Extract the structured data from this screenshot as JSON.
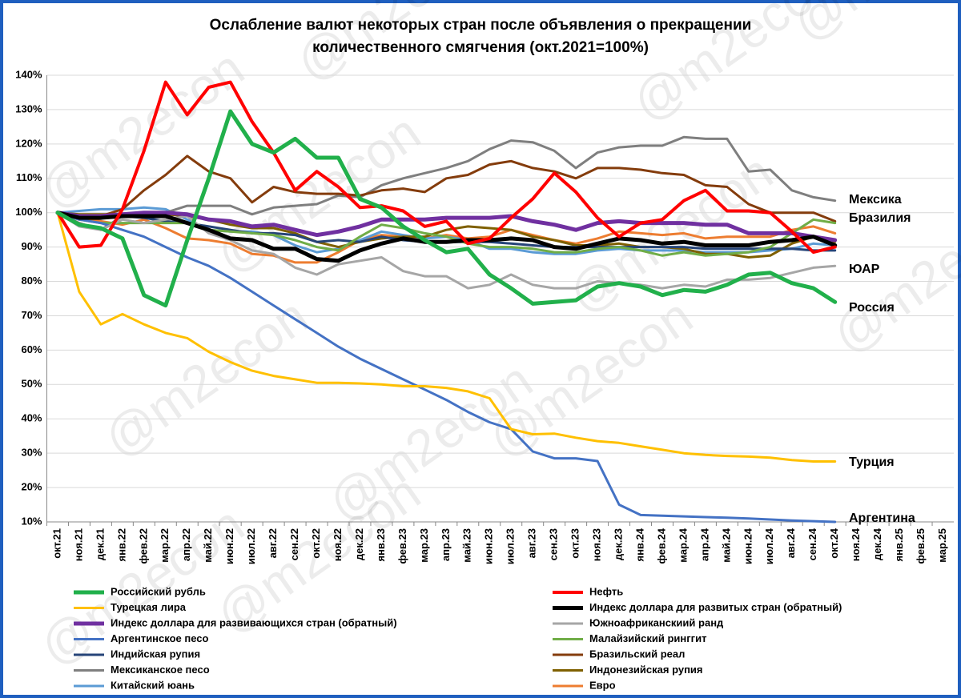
{
  "chart_data": {
    "type": "line",
    "title": [
      "Ослабление валют некоторых стран после объявления о прекращении",
      "количественного смягчения  (окт.2021=100%)"
    ],
    "watermark": "@m2econ",
    "categories": [
      "окт.21",
      "ноя.21",
      "дек.21",
      "янв.22",
      "фев.22",
      "мар.22",
      "апр.22",
      "май.22",
      "июн.22",
      "июл.22",
      "авг.22",
      "сен.22",
      "окт.22",
      "ноя.22",
      "дек.22",
      "янв.23",
      "фев.23",
      "мар.23",
      "апр.23",
      "май.23",
      "июн.23",
      "июл.23",
      "авг.23",
      "сен.23",
      "окт.23",
      "ноя.23",
      "дек.23",
      "янв.24",
      "фев.24",
      "мар.24",
      "апр.24",
      "май.24",
      "июн.24",
      "июл.24",
      "авг.24",
      "сен.24",
      "окт.24",
      "ноя.24",
      "дек.24",
      "янв.25",
      "фев.25",
      "мар.25"
    ],
    "ylim": [
      10,
      140
    ],
    "yticks": [
      {
        "value": 10,
        "label": "10%"
      },
      {
        "value": 20,
        "label": "20%"
      },
      {
        "value": 30,
        "label": "30%"
      },
      {
        "value": 40,
        "label": "40%"
      },
      {
        "value": 50,
        "label": "50%"
      },
      {
        "value": 60,
        "label": "60%"
      },
      {
        "value": 70,
        "label": "70%"
      },
      {
        "value": 80,
        "label": "80%"
      },
      {
        "value": 90,
        "label": "90%"
      },
      {
        "value": 100,
        "label": "100%"
      },
      {
        "value": 110,
        "label": "110%"
      },
      {
        "value": 120,
        "label": "120%"
      },
      {
        "value": 130,
        "label": "130%"
      },
      {
        "value": 140,
        "label": "140%"
      }
    ],
    "grid": true,
    "annotations": [
      "Мексика",
      "Бразилия",
      "ЮАР",
      "Россия",
      "Турция",
      "Аргентина"
    ],
    "series": [
      {
        "name": "Российский рубль",
        "color": "#21b04b",
        "width": 5,
        "values": [
          100,
          96.5,
          95.5,
          92.5,
          76,
          73,
          92,
          110,
          129.5,
          120,
          117.5,
          121.5,
          116,
          116,
          104,
          101.5,
          96,
          92,
          88.5,
          89.5,
          82,
          78,
          73.5,
          74,
          74.5,
          78.5,
          79.5,
          78.5,
          76,
          77.5,
          77,
          79,
          82,
          82.5,
          79.5,
          78,
          74,
          null,
          null,
          null,
          null,
          null
        ]
      },
      {
        "name": "Нефть",
        "color": "#ff0000",
        "width": 4,
        "values": [
          100,
          90,
          90.5,
          101,
          118,
          138,
          128.5,
          136.5,
          138,
          126.5,
          117.5,
          106.5,
          112,
          107.5,
          101.5,
          102,
          100.5,
          96,
          97.5,
          91,
          92.5,
          98.5,
          104,
          111.5,
          106,
          98.5,
          93,
          97,
          98,
          103.5,
          106.5,
          100.5,
          100.5,
          100,
          94.5,
          88.5,
          90,
          null,
          null,
          null,
          null,
          null
        ]
      },
      {
        "name": "Турецкая лира",
        "color": "#ffc000",
        "width": 3,
        "values": [
          100,
          77,
          67.5,
          70.5,
          67.5,
          65,
          63.5,
          59.5,
          56.5,
          54,
          52.5,
          51.5,
          50.5,
          50.5,
          50.3,
          50,
          49.5,
          49.5,
          49,
          48,
          46,
          37,
          35.5,
          35.7,
          34.5,
          33.5,
          33,
          32,
          31,
          30,
          29.5,
          29.2,
          29,
          28.7,
          28,
          27.6,
          27.6,
          null,
          null,
          null,
          null,
          null
        ]
      },
      {
        "name": "Индекс доллара для развитых стран (обратный)",
        "color": "#000000",
        "width": 5,
        "values": [
          100,
          98.5,
          98.5,
          99,
          99,
          99,
          97,
          95,
          92.5,
          92,
          89.5,
          89.5,
          86.5,
          86,
          89,
          91,
          92.5,
          91.5,
          91.5,
          92,
          92,
          92.5,
          92,
          90,
          89.5,
          91,
          92.5,
          92,
          91,
          91.5,
          90.5,
          90.5,
          90.5,
          91.5,
          92,
          93,
          90.5,
          null,
          null,
          null,
          null,
          null
        ]
      },
      {
        "name": "Индекс доллара для развивающихся стран (обратный)",
        "color": "#7030a0",
        "width": 5,
        "values": [
          100,
          99,
          99,
          99.5,
          100,
          100,
          99.5,
          98,
          97.5,
          96,
          96.5,
          95,
          93.5,
          94.5,
          96,
          98,
          98,
          98,
          98.5,
          98.5,
          98.5,
          99,
          97.5,
          96.5,
          95,
          97,
          97.5,
          97,
          97,
          97,
          96.5,
          96.5,
          94,
          94,
          94,
          93,
          92,
          null,
          null,
          null,
          null,
          null
        ]
      },
      {
        "name": "Южноафриканскиий ранд",
        "color": "#a6a6a6",
        "width": 3,
        "values": [
          100,
          96,
          95,
          98,
          97,
          98,
          99,
          94,
          92,
          89,
          88,
          84,
          82,
          85,
          86,
          87,
          83,
          81.5,
          81.5,
          78,
          79,
          82,
          79,
          78,
          78,
          80,
          79.5,
          79,
          78,
          79,
          78.5,
          80.5,
          80.5,
          81,
          82.5,
          84,
          84.5,
          null,
          null,
          null,
          null,
          null
        ]
      },
      {
        "name": "Аргентинское песо",
        "color": "#4472c4",
        "width": 3,
        "values": [
          100,
          98,
          97,
          95,
          93,
          90,
          87,
          84.5,
          81,
          77,
          73,
          69,
          65,
          61,
          57.5,
          54.5,
          51.5,
          48.5,
          45.5,
          42,
          39,
          37,
          30.5,
          28.5,
          28.5,
          27.7,
          15,
          12,
          11.8,
          11.6,
          11.4,
          11.2,
          11,
          10.7,
          10.4,
          10.2,
          10,
          null,
          null,
          null,
          null,
          null
        ]
      },
      {
        "name": "Малайзийский ринггит",
        "color": "#70ad47",
        "width": 3,
        "values": [
          100,
          98,
          97,
          97,
          97,
          97,
          97,
          95,
          94.5,
          94,
          93.5,
          92,
          90,
          89,
          93,
          96.5,
          95.5,
          94,
          93,
          91,
          90,
          90,
          89.5,
          88.5,
          88.5,
          89.5,
          90,
          89,
          87.5,
          88.5,
          87.5,
          88,
          88.5,
          90,
          94,
          98,
          97,
          null,
          null,
          null,
          null,
          null
        ]
      },
      {
        "name": "Индийская рупия",
        "color": "#264478",
        "width": 3,
        "values": [
          100,
          99,
          98.5,
          99,
          98.5,
          97.5,
          97,
          96,
          95,
          94,
          94,
          93.5,
          91.5,
          92,
          91.5,
          93,
          92,
          91.5,
          91.5,
          91.5,
          91.5,
          91,
          90.5,
          90,
          90,
          90,
          90,
          90,
          90,
          90,
          89.5,
          89.5,
          89.5,
          89.5,
          89.5,
          89,
          89,
          null,
          null,
          null,
          null,
          null
        ]
      },
      {
        "name": "Бразильский реал",
        "color": "#843c0c",
        "width": 3,
        "values": [
          100,
          98.5,
          99,
          101,
          106.5,
          111,
          116.5,
          112,
          110,
          103,
          107.5,
          106,
          105.5,
          105.5,
          105,
          106.5,
          107,
          106,
          110,
          111,
          114,
          115,
          113,
          112,
          110,
          113,
          113,
          112.5,
          111.5,
          111,
          108,
          107.5,
          102.5,
          100,
          100,
          100,
          97.5,
          null,
          null,
          null,
          null,
          null
        ]
      },
      {
        "name": "Мексиканское песо",
        "color": "#7f7f7f",
        "width": 3,
        "values": [
          100,
          97,
          95,
          99,
          100,
          100,
          102,
          102,
          102,
          99.5,
          101.5,
          102,
          102.5,
          105,
          104.5,
          108,
          110,
          111.5,
          113,
          115,
          118.5,
          121,
          120.5,
          118,
          113,
          117.5,
          119,
          119.5,
          119.5,
          122,
          121.5,
          121.5,
          112,
          112.5,
          106.5,
          104.5,
          103.5,
          null,
          null,
          null,
          null,
          null
        ]
      },
      {
        "name": "Индонезийская рупия",
        "color": "#7f6000",
        "width": 3,
        "values": [
          100,
          99.5,
          99.5,
          99.5,
          99.5,
          99.5,
          99,
          98,
          96.5,
          95.5,
          95.5,
          94,
          91.5,
          90,
          91.5,
          92.5,
          93,
          93,
          95,
          96,
          95.5,
          95,
          93,
          92,
          90.5,
          90.5,
          91,
          90,
          90,
          89.5,
          88,
          88,
          87,
          87.5,
          91,
          93,
          91.5,
          null,
          null,
          null,
          null,
          null
        ]
      },
      {
        "name": "Китайский юань",
        "color": "#5b9bd5",
        "width": 3,
        "values": [
          100,
          100.5,
          101,
          101,
          101.5,
          101,
          98,
          95,
          94.5,
          94.5,
          93.5,
          90.5,
          88.5,
          89.5,
          92,
          94.5,
          93.5,
          92.5,
          93,
          92,
          89.5,
          89.5,
          88.5,
          88,
          88,
          89,
          89.5,
          89,
          89,
          89,
          88.5,
          88.5,
          88.5,
          89,
          89.5,
          91,
          90.5,
          null,
          null,
          null,
          null,
          null
        ]
      },
      {
        "name": "Евро",
        "color": "#ed7d31",
        "width": 3,
        "values": [
          100,
          98.5,
          97.5,
          96.5,
          98,
          95.5,
          92.5,
          92,
          91,
          88,
          87.5,
          85.5,
          85.5,
          88.5,
          92,
          93.5,
          93,
          92.5,
          93.5,
          92.5,
          93,
          95,
          93.5,
          92,
          91,
          92.5,
          94.5,
          94,
          93.5,
          94,
          92.5,
          93,
          93,
          93,
          95,
          96,
          94,
          null,
          null,
          null,
          null,
          null
        ]
      }
    ]
  }
}
